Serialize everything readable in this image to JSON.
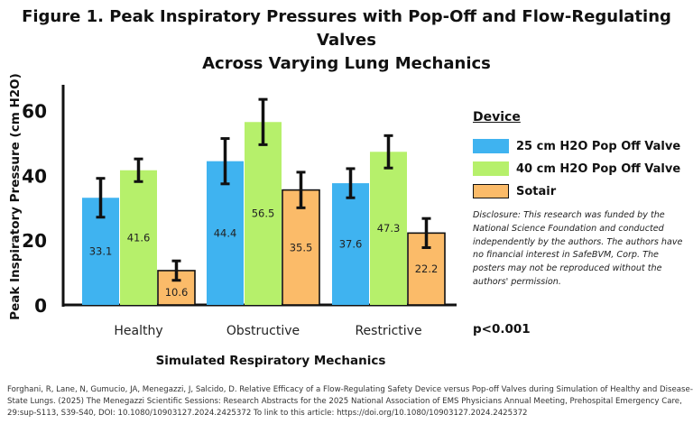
{
  "title_line1": "Figure 1. Peak Inspiratory Pressures with Pop-Off and Flow-Regulating Valves",
  "title_line2": "Across Varying Lung Mechanics",
  "legend": {
    "title": "Device",
    "items": [
      {
        "label": "25 cm H2O Pop Off Valve",
        "color": "#3fb3f0"
      },
      {
        "label": "40 cm H2O Pop Off Valve",
        "color": "#b6f06b"
      },
      {
        "label": "Sotair",
        "color": "#fbbb69"
      }
    ]
  },
  "disclosure": "Disclosure: This research was funded by the National Science Foundation and conducted independently by the authors. The authors have no financial interest in SafeBVM, Corp. The posters may not be reproduced without the authors' permission.",
  "p_value": "p<0.001",
  "citation": "Forghani, R, Lane, N, Gumucio, JA, Menegazzi, J, Salcido, D. Relative Efficacy of a Flow-Regulating Safety Device versus Pop-off Valves during Simulation of Healthy and Disease-State Lungs. (2025) The Menegazzi Scientific Sessions: Research Abstracts for the 2025 National Association of EMS Physicians Annual Meeting, Prehospital Emergency Care, 29:sup-S113, S39-S40, DOI: 10.1080/10903127.2024.2425372 To link to this article: https://doi.org/10.1080/10903127.2024.2425372",
  "chart_data": {
    "type": "bar",
    "xlabel": "Simulated Respiratory Mechanics",
    "ylabel": "Peak Inspiratory Pressure (cm H2O)",
    "ylim": [
      0,
      68
    ],
    "yticks": [
      0,
      20,
      40,
      60
    ],
    "categories": [
      "Healthy",
      "Obstructive",
      "Restrictive"
    ],
    "series": [
      {
        "name": "25 cm H2O Pop Off Valve",
        "color": "#3fb3f0",
        "values": [
          33.1,
          44.4,
          37.6
        ],
        "error": [
          6,
          7,
          4.5
        ]
      },
      {
        "name": "40 cm H2O Pop Off Valve",
        "color": "#b6f06b",
        "values": [
          41.6,
          56.5,
          47.3
        ],
        "error": [
          3.5,
          7,
          5
        ]
      },
      {
        "name": "Sotair",
        "color": "#fbbb69",
        "values": [
          10.6,
          35.5,
          22.2
        ],
        "error": [
          3,
          5.5,
          4.5
        ]
      }
    ]
  }
}
